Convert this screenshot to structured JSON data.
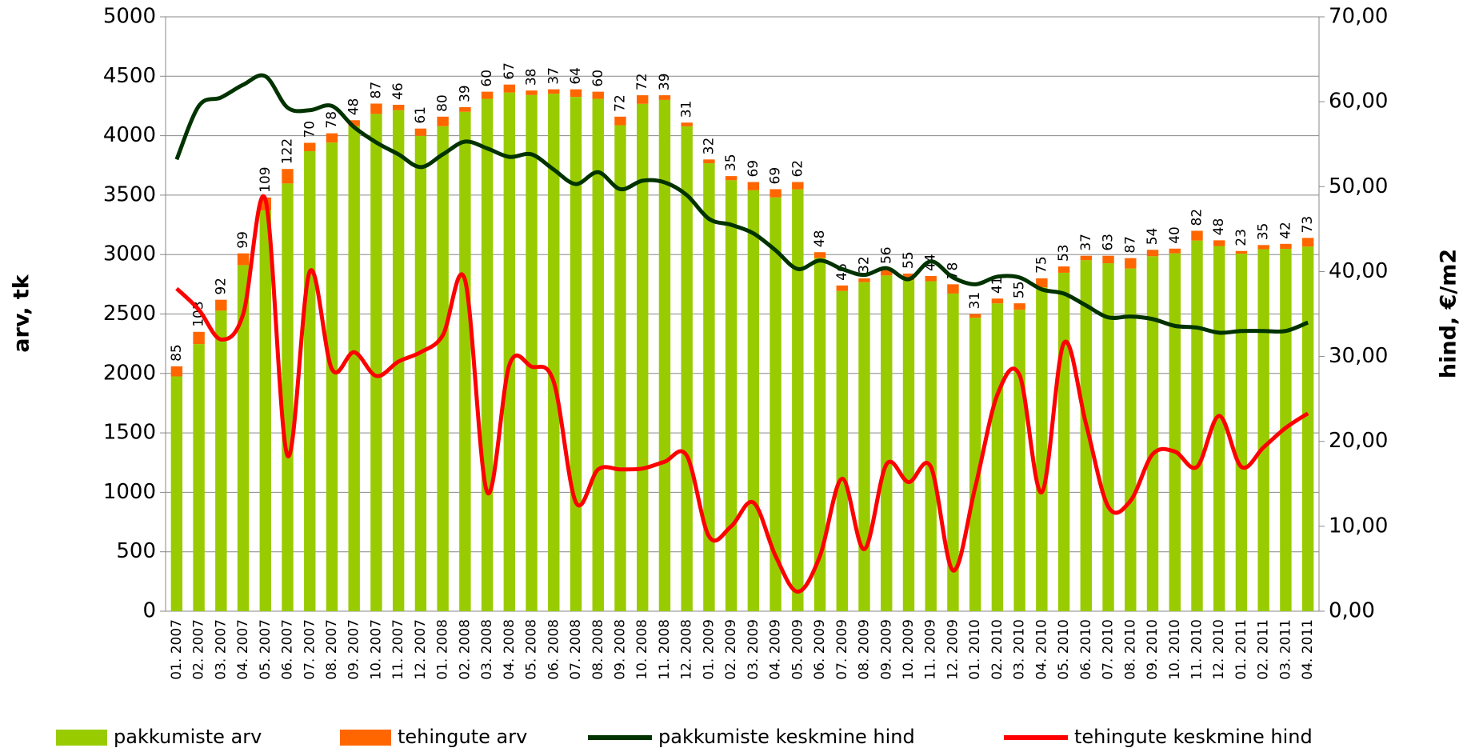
{
  "chart_data": {
    "type": "bar-line",
    "categories": [
      "01. 2007",
      "02. 2007",
      "03. 2007",
      "04. 2007",
      "05. 2007",
      "06. 2007",
      "07. 2007",
      "08. 2007",
      "09. 2007",
      "10. 2007",
      "11. 2007",
      "12. 2007",
      "01. 2008",
      "02. 2008",
      "03. 2008",
      "04. 2008",
      "05. 2008",
      "06. 2008",
      "07. 2008",
      "08. 2008",
      "09. 2008",
      "10. 2008",
      "11. 2008",
      "12. 2008",
      "01. 2009",
      "02. 2009",
      "03. 2009",
      "04. 2009",
      "05. 2009",
      "06. 2009",
      "07. 2009",
      "08. 2009",
      "09. 2009",
      "10. 2009",
      "11. 2009",
      "12. 2009",
      "01. 2010",
      "02. 2010",
      "03. 2010",
      "04. 2010",
      "05. 2010",
      "06. 2010",
      "07. 2010",
      "08. 2010",
      "09. 2010",
      "10. 2010",
      "11. 2010",
      "12. 2010",
      "01. 2011",
      "02. 2011",
      "03. 2011",
      "04. 2011"
    ],
    "series": [
      {
        "name": "pakkumiste arv",
        "type": "bar",
        "color": "#99cc00",
        "values": [
          1975,
          2247,
          2528,
          2911,
          3371,
          3598,
          3870,
          3942,
          4082,
          4183,
          4214,
          3999,
          4080,
          4201,
          4310,
          4363,
          4342,
          4353,
          4326,
          4310,
          4088,
          4268,
          4301,
          4079,
          3768,
          3625,
          3541,
          3481,
          3548,
          2972,
          2694,
          2768,
          2824,
          2785,
          2776,
          2672,
          2469,
          2589,
          2535,
          2725,
          2847,
          2953,
          2927,
          2883,
          2986,
          3010,
          3118,
          3072,
          3007,
          3045,
          3048,
          3067
        ]
      },
      {
        "name": "tehingute arv",
        "type": "bar",
        "color": "#ff6600",
        "values": [
          85,
          103,
          92,
          99,
          109,
          122,
          70,
          78,
          48,
          87,
          46,
          61,
          80,
          39,
          60,
          67,
          38,
          37,
          64,
          60,
          72,
          72,
          39,
          31,
          32,
          35,
          69,
          69,
          62,
          48,
          46,
          32,
          56,
          55,
          44,
          78,
          31,
          41,
          55,
          75,
          53,
          37,
          63,
          87,
          54,
          40,
          82,
          48,
          23,
          35,
          42,
          73
        ]
      },
      {
        "name": "pakkumiste keskmine hind",
        "type": "line",
        "axis": "y2",
        "color": "#003300",
        "values": [
          53.2,
          59.5,
          60.5,
          62,
          63,
          59.3,
          59,
          59.5,
          57,
          55.2,
          53.8,
          52.3,
          53.8,
          55.3,
          54.5,
          53.5,
          53.8,
          52,
          50.3,
          51.7,
          49.7,
          50.7,
          50.5,
          49,
          46.2,
          45.5,
          44.5,
          42.5,
          40.3,
          41.3,
          40.3,
          39.6,
          40.4,
          39.1,
          41.2,
          39.3,
          38.5,
          39.4,
          39.3,
          37.9,
          37.4,
          36,
          34.6,
          34.7,
          34.4,
          33.6,
          33.4,
          32.8,
          33,
          33,
          33,
          34
        ]
      },
      {
        "name": "tehingute keskmine hind",
        "type": "line",
        "axis": "y2",
        "color": "#ff0000",
        "values": [
          38,
          35.5,
          32,
          35,
          48.5,
          18.3,
          40,
          28.5,
          30.5,
          27.7,
          29.4,
          30.5,
          32.5,
          39,
          14,
          29,
          28.8,
          27,
          12.8,
          16.7,
          16.7,
          16.8,
          17.6,
          18.3,
          8.8,
          10,
          12.8,
          6.5,
          2.3,
          6.5,
          15.6,
          7.3,
          17.3,
          15.2,
          17,
          4.8,
          14.6,
          25.5,
          27.8,
          14,
          31.6,
          22,
          12.3,
          13,
          18.5,
          18.8,
          17,
          23,
          17,
          19.3,
          21.6,
          23.3
        ]
      }
    ],
    "ylabel": "arv, tk",
    "y2label": "hind, €/m2",
    "ylim": [
      0,
      5000
    ],
    "yticks": [
      0,
      500,
      1000,
      1500,
      2000,
      2500,
      3000,
      3500,
      4000,
      4500,
      5000
    ],
    "y2lim": [
      0,
      70
    ],
    "y2ticks": [
      {
        "value": 0,
        "label": "0,00"
      },
      {
        "value": 10,
        "label": "10,00"
      },
      {
        "value": 20,
        "label": "20,00"
      },
      {
        "value": 30,
        "label": "30,00"
      },
      {
        "value": 40,
        "label": "40,00"
      },
      {
        "value": 50,
        "label": "50,00"
      },
      {
        "value": 60,
        "label": "60,00"
      },
      {
        "value": 70,
        "label": "70,00"
      }
    ],
    "grid": true,
    "legend": "bottom"
  }
}
